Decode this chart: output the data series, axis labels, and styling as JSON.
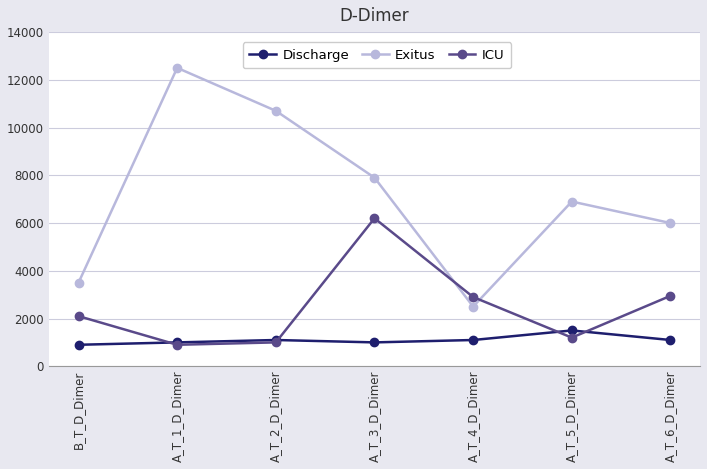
{
  "title": "D-Dimer",
  "categories": [
    "B_T_D_Dimer",
    "A_T_1_D_Dimer",
    "A_T_2_D_Dimer",
    "A_T_3_D_Dimer",
    "A_T_4_D_Dimer",
    "A_T_5_D_Dimer",
    "A_T_6_D_Dimer"
  ],
  "series": {
    "Discharge": {
      "values": [
        900,
        1000,
        1100,
        1000,
        1100,
        1500,
        1100
      ],
      "color": "#1e1e6e",
      "marker": "o",
      "linewidth": 1.8,
      "markersize": 6
    },
    "Exitus": {
      "values": [
        3500,
        12500,
        10700,
        7900,
        2500,
        6900,
        6000
      ],
      "color": "#b8b8dc",
      "marker": "o",
      "linewidth": 1.8,
      "markersize": 6
    },
    "ICU": {
      "values": [
        2100,
        900,
        1000,
        6200,
        2900,
        1200,
        2950
      ],
      "color": "#5a4a8a",
      "marker": "o",
      "linewidth": 1.8,
      "markersize": 6
    }
  },
  "ylim": [
    0,
    14000
  ],
  "yticks": [
    0,
    2000,
    4000,
    6000,
    8000,
    10000,
    12000,
    14000
  ],
  "background_color": "#e8e8f0",
  "plot_background_color": "#ffffff",
  "grid_color": "#ccccdd",
  "title_fontsize": 12,
  "tick_fontsize": 8.5,
  "legend_fontsize": 9.5
}
